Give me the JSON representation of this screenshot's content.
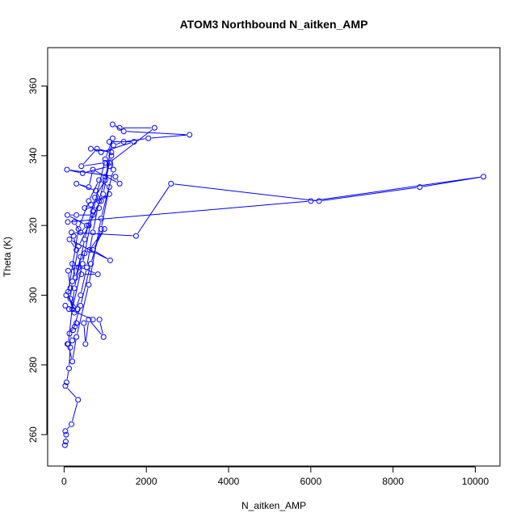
{
  "chart_data": {
    "type": "line",
    "title": "ATOM3 Northbound N_aitken_AMP",
    "xlabel": "N_aitken_AMP",
    "ylabel": "Theta (K)",
    "xlim": [
      -400,
      10600
    ],
    "ylim": [
      251,
      371
    ],
    "xticks": [
      0,
      2000,
      4000,
      6000,
      8000,
      10000
    ],
    "yticks": [
      260,
      280,
      300,
      320,
      340,
      360
    ],
    "xtick_labels": [
      "0",
      "2000",
      "4000",
      "6000",
      "8000",
      "10000"
    ],
    "ytick_labels": [
      "260",
      "280",
      "300",
      "320",
      "340",
      "360"
    ],
    "series_color": "#0000ff",
    "marker": "open-circle",
    "grid": false,
    "points": [
      [
        20,
        257
      ],
      [
        40,
        258
      ],
      [
        50,
        260
      ],
      [
        30,
        261
      ],
      [
        180,
        263
      ],
      [
        340,
        270
      ],
      [
        30,
        274
      ],
      [
        60,
        275
      ],
      [
        120,
        279
      ],
      [
        150,
        285
      ],
      [
        80,
        286
      ],
      [
        200,
        287
      ],
      [
        130,
        289
      ],
      [
        260,
        291
      ],
      [
        300,
        292
      ],
      [
        480,
        292
      ],
      [
        520,
        286
      ],
      [
        600,
        293
      ],
      [
        960,
        288
      ],
      [
        860,
        293
      ],
      [
        700,
        293
      ],
      [
        120,
        296
      ],
      [
        30,
        297
      ],
      [
        330,
        296
      ],
      [
        50,
        300
      ],
      [
        150,
        302
      ],
      [
        100,
        307
      ],
      [
        350,
        308
      ],
      [
        420,
        306
      ],
      [
        820,
        306
      ],
      [
        200,
        309
      ],
      [
        280,
        305
      ],
      [
        400,
        311
      ],
      [
        500,
        312
      ],
      [
        620,
        313
      ],
      [
        980,
        319
      ],
      [
        700,
        313
      ],
      [
        1120,
        310
      ],
      [
        130,
        316
      ],
      [
        300,
        313
      ],
      [
        230,
        317
      ],
      [
        180,
        318
      ],
      [
        1750,
        317
      ],
      [
        2600,
        332
      ],
      [
        6200,
        327
      ],
      [
        8650,
        331
      ],
      [
        10200,
        334
      ],
      [
        6000,
        327
      ],
      [
        90,
        321
      ],
      [
        250,
        321
      ],
      [
        400,
        318
      ],
      [
        550,
        320
      ],
      [
        80,
        323
      ],
      [
        300,
        323
      ],
      [
        700,
        323
      ],
      [
        850,
        325
      ],
      [
        500,
        325
      ],
      [
        650,
        326
      ],
      [
        1100,
        329
      ],
      [
        900,
        327
      ],
      [
        770,
        330
      ],
      [
        300,
        332
      ],
      [
        600,
        331
      ],
      [
        700,
        336
      ],
      [
        1350,
        332
      ],
      [
        1250,
        334
      ],
      [
        70,
        336
      ],
      [
        450,
        335
      ],
      [
        1100,
        337
      ],
      [
        1000,
        338
      ],
      [
        420,
        337
      ],
      [
        800,
        342
      ],
      [
        1150,
        341
      ],
      [
        650,
        342
      ],
      [
        900,
        341
      ],
      [
        1700,
        344
      ],
      [
        1100,
        344
      ],
      [
        1200,
        343
      ],
      [
        1450,
        344
      ],
      [
        2050,
        345
      ],
      [
        3050,
        346
      ],
      [
        1450,
        347
      ],
      [
        1180,
        349
      ],
      [
        1350,
        348
      ],
      [
        2200,
        348
      ],
      [
        1100,
        338
      ],
      [
        950,
        329
      ],
      [
        600,
        320
      ],
      [
        350,
        314
      ],
      [
        200,
        304
      ],
      [
        150,
        299
      ],
      [
        250,
        295
      ],
      [
        400,
        300
      ],
      [
        550,
        308
      ],
      [
        700,
        318
      ],
      [
        850,
        327
      ],
      [
        1000,
        334
      ],
      [
        1150,
        340
      ],
      [
        1200,
        336
      ],
      [
        900,
        322
      ],
      [
        600,
        303
      ],
      [
        300,
        288
      ],
      [
        200,
        281
      ],
      [
        100,
        286
      ],
      [
        250,
        302
      ],
      [
        500,
        316
      ],
      [
        750,
        328
      ],
      [
        1000,
        333
      ],
      [
        1180,
        345
      ],
      [
        1000,
        339
      ],
      [
        700,
        324
      ],
      [
        450,
        309
      ],
      [
        200,
        296
      ],
      [
        100,
        301
      ],
      [
        350,
        319
      ],
      [
        600,
        327
      ],
      [
        850,
        333
      ],
      [
        1100,
        331
      ],
      [
        900,
        319
      ],
      [
        650,
        309
      ],
      [
        400,
        297
      ],
      [
        220,
        290
      ]
    ]
  }
}
